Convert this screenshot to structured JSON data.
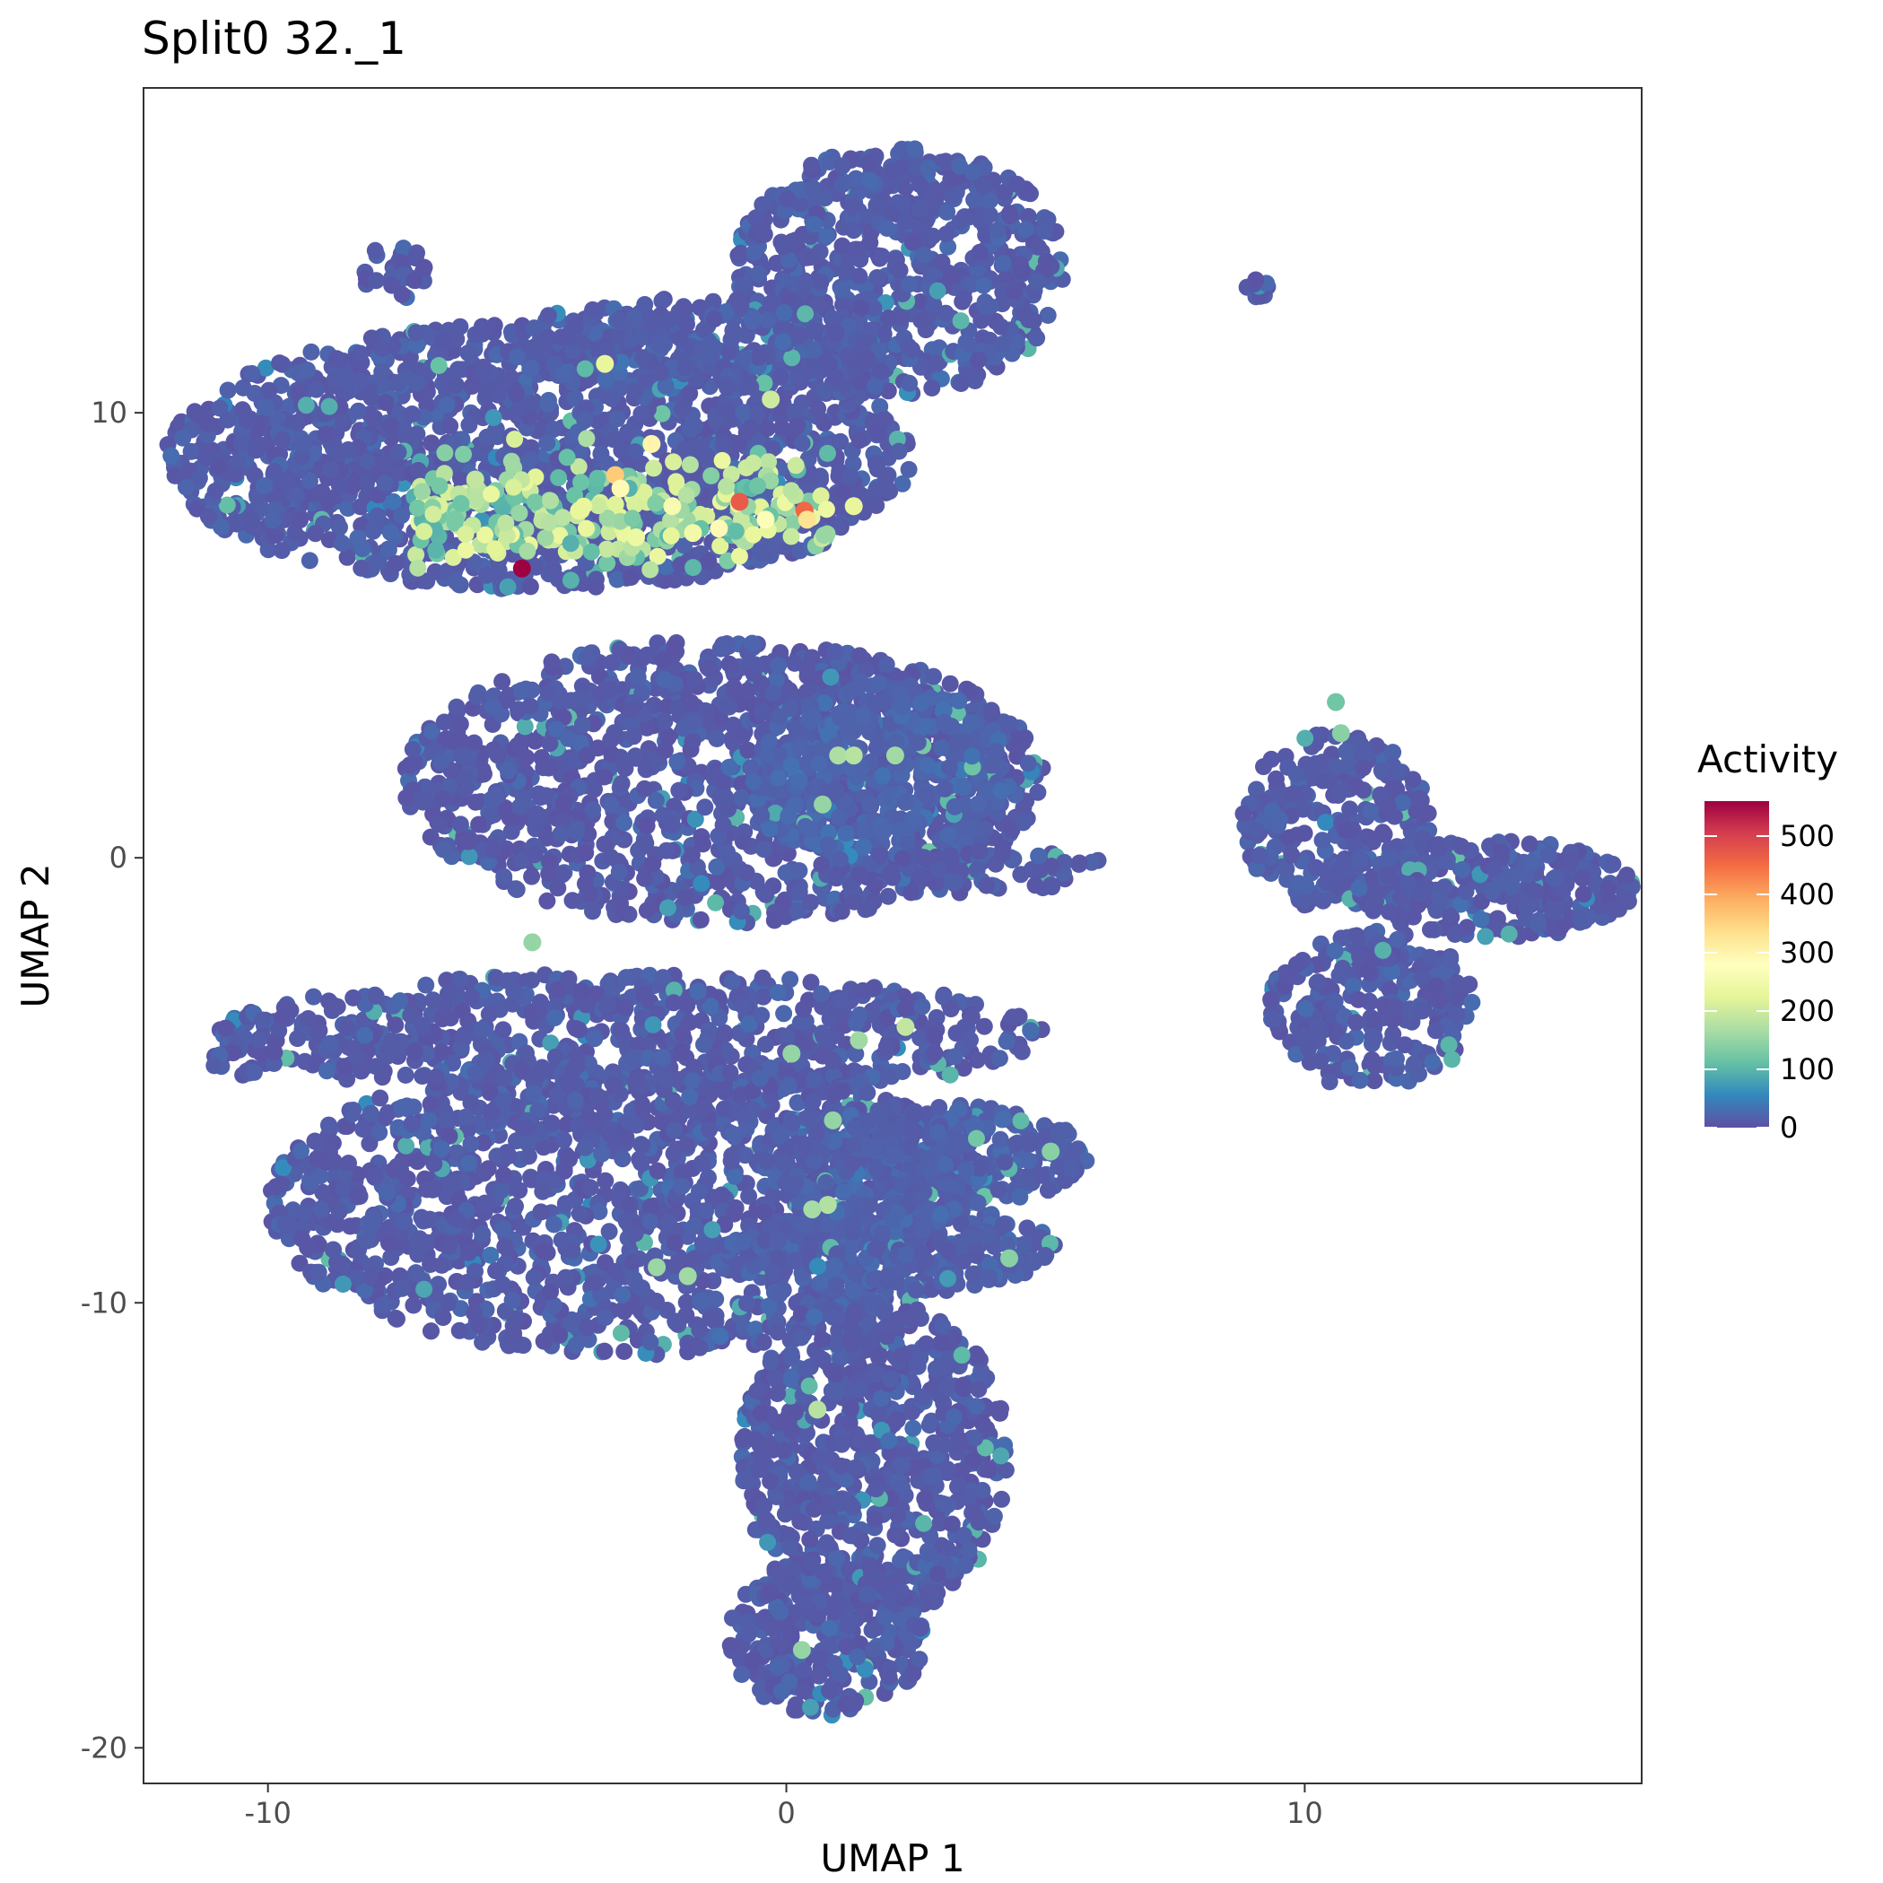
{
  "chart_data": {
    "type": "scatter",
    "title": "Split0 32._1",
    "xlabel": "UMAP 1",
    "ylabel": "UMAP 2",
    "xlim": [
      -12.4,
      16.5
    ],
    "ylim": [
      -20.8,
      17.3
    ],
    "x_ticks": [
      -10,
      0,
      10
    ],
    "y_ticks": [
      10,
      0,
      -10,
      -20
    ],
    "grid": false,
    "legend": {
      "title": "Activity",
      "placement": "right",
      "ticks": [
        0,
        100,
        200,
        300,
        400,
        500
      ],
      "range": [
        0,
        560
      ],
      "palette": [
        "#5E4FA2",
        "#3288BD",
        "#66C2A5",
        "#ABDDA4",
        "#E6F598",
        "#FFFFBF",
        "#FEE08B",
        "#FDAE61",
        "#F46D43",
        "#D53E4F",
        "#9E0142"
      ]
    },
    "clusters": [
      {
        "cx": -4.8,
        "cy": 9.0,
        "rx": 7.2,
        "ry": 3.0,
        "n": 1600,
        "base": 6
      },
      {
        "cx": 2.2,
        "cy": 13.2,
        "rx": 3.2,
        "ry": 2.8,
        "n": 650,
        "base": 6
      },
      {
        "cx": -1.8,
        "cy": 11.5,
        "rx": 3.6,
        "ry": 1.1,
        "n": 300,
        "base": 8
      },
      {
        "cx": -1.2,
        "cy": 1.7,
        "rx": 6.2,
        "ry": 3.2,
        "n": 1300,
        "base": 4
      },
      {
        "cx": 1.8,
        "cy": 1.8,
        "rx": 2.5,
        "ry": 2.2,
        "n": 350,
        "base": 14
      },
      {
        "cx": -3.0,
        "cy": -4.0,
        "rx": 8.0,
        "ry": 1.4,
        "n": 700,
        "base": 5
      },
      {
        "cx": -3.0,
        "cy": -7.8,
        "rx": 7.0,
        "ry": 3.4,
        "n": 1800,
        "base": 5
      },
      {
        "cx": 2.6,
        "cy": -6.7,
        "rx": 3.2,
        "ry": 1.2,
        "n": 350,
        "base": 10
      },
      {
        "cx": 2.0,
        "cy": -8.8,
        "rx": 3.2,
        "ry": 1.0,
        "n": 300,
        "base": 10
      },
      {
        "cx": 1.7,
        "cy": -13.5,
        "rx": 2.6,
        "ry": 3.6,
        "n": 700,
        "base": 5
      },
      {
        "cx": 0.8,
        "cy": -17.5,
        "rx": 1.9,
        "ry": 1.8,
        "n": 300,
        "base": 5
      },
      {
        "cx": 3.4,
        "cy": -0.3,
        "rx": 3.0,
        "ry": 0.5,
        "n": 90,
        "base": 5
      },
      {
        "cx": 10.6,
        "cy": 0.8,
        "rx": 1.8,
        "ry": 2.0,
        "n": 280,
        "base": 6
      },
      {
        "cx": 13.7,
        "cy": -0.7,
        "rx": 2.7,
        "ry": 1.1,
        "n": 300,
        "base": 5
      },
      {
        "cx": 11.3,
        "cy": -3.4,
        "rx": 2.0,
        "ry": 1.8,
        "n": 260,
        "base": 5
      },
      {
        "cx": -7.5,
        "cy": 13.2,
        "rx": 0.7,
        "ry": 0.7,
        "n": 30,
        "base": 4
      },
      {
        "cx": 9.1,
        "cy": 12.8,
        "rx": 0.25,
        "ry": 0.25,
        "n": 12,
        "base": 4
      },
      {
        "cx": -10.6,
        "cy": -4.6,
        "rx": 0.6,
        "ry": 0.3,
        "n": 12,
        "base": 4
      }
    ],
    "hotspots": [
      {
        "x": -5.1,
        "y": 6.5,
        "v": 560
      },
      {
        "x": -0.9,
        "y": 8.0,
        "v": 470
      },
      {
        "x": 0.35,
        "y": 7.8,
        "v": 455
      },
      {
        "x": -3.3,
        "y": 8.6,
        "v": 360
      },
      {
        "x": -2.6,
        "y": 9.3,
        "v": 300
      },
      {
        "x": -3.2,
        "y": 8.3,
        "v": 290
      },
      {
        "x": 0.4,
        "y": 7.6,
        "v": 330
      },
      {
        "x": -1.3,
        "y": 7.4,
        "v": 290
      },
      {
        "x": -2.2,
        "y": 7.9,
        "v": 260
      },
      {
        "x": -1.8,
        "y": 7.3,
        "v": 250
      },
      {
        "x": -0.4,
        "y": 7.6,
        "v": 270
      },
      {
        "x": -4.0,
        "y": 7.8,
        "v": 230
      },
      {
        "x": -3.5,
        "y": 11.1,
        "v": 230
      },
      {
        "x": -0.3,
        "y": 10.3,
        "v": 200
      },
      {
        "x": 1.3,
        "y": 7.9,
        "v": 230
      },
      {
        "x": -2.9,
        "y": 7.2,
        "v": 240
      },
      {
        "x": -6.0,
        "y": 8.5,
        "v": 190
      },
      {
        "x": 1.0,
        "y": 2.3,
        "v": 170
      },
      {
        "x": 1.3,
        "y": 2.3,
        "v": 180
      },
      {
        "x": 2.1,
        "y": 2.3,
        "v": 160
      },
      {
        "x": 0.7,
        "y": 1.2,
        "v": 150
      },
      {
        "x": 2.3,
        "y": -3.8,
        "v": 190
      },
      {
        "x": 1.4,
        "y": -4.1,
        "v": 160
      },
      {
        "x": 0.1,
        "y": -4.4,
        "v": 150
      },
      {
        "x": 0.8,
        "y": -7.8,
        "v": 175
      },
      {
        "x": 0.5,
        "y": -7.9,
        "v": 165
      },
      {
        "x": 0.9,
        "y": -5.9,
        "v": 150
      },
      {
        "x": -2.5,
        "y": -9.2,
        "v": 155
      },
      {
        "x": -1.9,
        "y": -9.4,
        "v": 160
      },
      {
        "x": 0.6,
        "y": -12.4,
        "v": 180
      },
      {
        "x": 0.3,
        "y": -17.8,
        "v": 150
      },
      {
        "x": 5.1,
        "y": -6.6,
        "v": 140
      },
      {
        "x": 4.3,
        "y": -9.0,
        "v": 140
      },
      {
        "x": -4.9,
        "y": -1.9,
        "v": 150
      },
      {
        "x": 10.6,
        "y": 3.5,
        "v": 120
      },
      {
        "x": 10.7,
        "y": 2.8,
        "v": 140
      }
    ]
  }
}
